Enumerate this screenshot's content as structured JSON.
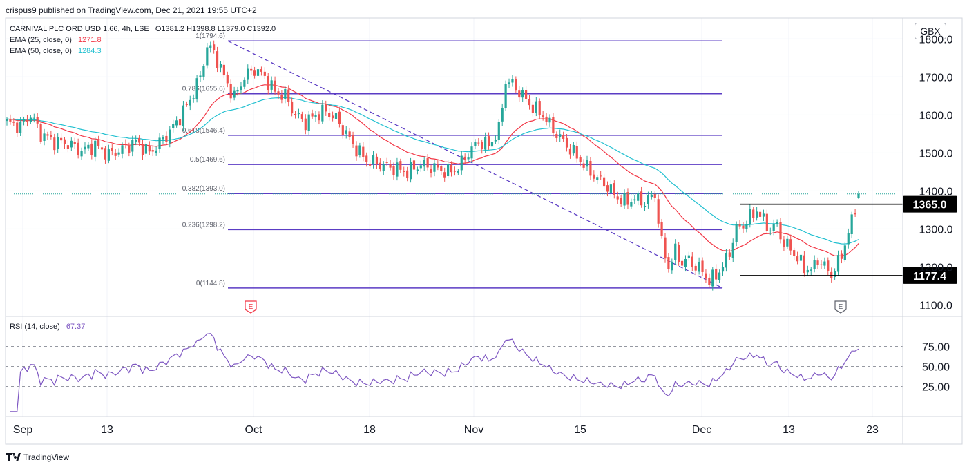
{
  "header": {
    "published_by": "crispus9 published on TradingView.com, Dec 21, 2021 19:55 UTC+2"
  },
  "legend": {
    "symbol_line": {
      "symbol": "CARNIVAL PLC ORD USD 1.66, 4h, LSE",
      "ohlc": "O1381.2  H1398.8  L1379.0  C1392.0"
    },
    "ema25": {
      "label": "EMA (25, close, 0)",
      "value": "1271.8",
      "color": "#f23645"
    },
    "ema50": {
      "label": "EMA (50, close, 0)",
      "value": "1284.3",
      "color": "#22c0d0"
    }
  },
  "currency_button": "GBX",
  "rsi_legend": {
    "label": "RSI (14, close)",
    "value": "67.37",
    "color": "#7e57c2"
  },
  "footer": {
    "brand": "TradingView"
  },
  "colors": {
    "up": "#26a69a",
    "down": "#ef5350",
    "fib": "#5b3cc4",
    "level": "#000000",
    "grid": "#f0f3fa"
  },
  "chart_data": [
    {
      "type": "candlestick",
      "title": "CARNIVAL PLC ORD USD 1.66, 4h, LSE",
      "currency": "GBX",
      "ylim": [
        1070,
        1855
      ],
      "y_ticks": [
        "1800.0",
        "1700.0",
        "1600.0",
        "1500.0",
        "1400.0",
        "1300.0",
        "1200.0",
        "1100.0"
      ],
      "x_ticks": [
        "Sep",
        "13",
        "Oct",
        "18",
        "Nov",
        "15",
        "Dec",
        "13",
        "23"
      ],
      "ohlc_last": {
        "open": 1381.2,
        "high": 1398.8,
        "low": 1379.0,
        "close": 1392.0
      },
      "fibonacci": [
        {
          "label": "1(1794.6)",
          "level": 1794.6
        },
        {
          "label": "0.786(1655.6)",
          "level": 1655.6
        },
        {
          "label": "0.618(1546.4)",
          "level": 1546.4
        },
        {
          "label": "0.5(1469.6)",
          "level": 1469.6
        },
        {
          "label": "0.382(1393.0)",
          "level": 1393.0
        },
        {
          "label": "0.236(1298.2)",
          "level": 1298.2
        },
        {
          "label": "0(1144.8)",
          "level": 1144.8
        }
      ],
      "horizontal_levels": [
        {
          "label": "1365.0",
          "level": 1365.0
        },
        {
          "label": "1177.4",
          "level": 1177.4
        }
      ],
      "price_anchors": [
        [
          0,
          1580
        ],
        [
          4,
          1570
        ],
        [
          7,
          1600
        ],
        [
          10,
          1550
        ],
        [
          14,
          1530
        ],
        [
          18,
          1525
        ],
        [
          22,
          1505
        ],
        [
          26,
          1520
        ],
        [
          30,
          1495
        ],
        [
          34,
          1510
        ],
        [
          38,
          1530
        ],
        [
          42,
          1500
        ],
        [
          46,
          1535
        ],
        [
          50,
          1580
        ],
        [
          54,
          1640
        ],
        [
          57,
          1700
        ],
        [
          59,
          1780
        ],
        [
          61,
          1765
        ],
        [
          64,
          1700
        ],
        [
          67,
          1645
        ],
        [
          70,
          1700
        ],
        [
          73,
          1720
        ],
        [
          76,
          1700
        ],
        [
          79,
          1660
        ],
        [
          82,
          1650
        ],
        [
          85,
          1600
        ],
        [
          88,
          1580
        ],
        [
          91,
          1600
        ],
        [
          94,
          1610
        ],
        [
          97,
          1590
        ],
        [
          100,
          1550
        ],
        [
          103,
          1510
        ],
        [
          106,
          1480
        ],
        [
          110,
          1470
        ],
        [
          114,
          1460
        ],
        [
          118,
          1450
        ],
        [
          122,
          1470
        ],
        [
          126,
          1460
        ],
        [
          130,
          1450
        ],
        [
          133,
          1460
        ],
        [
          136,
          1500
        ],
        [
          139,
          1530
        ],
        [
          142,
          1520
        ],
        [
          145,
          1560
        ],
        [
          147,
          1690
        ],
        [
          149,
          1680
        ],
        [
          152,
          1650
        ],
        [
          155,
          1620
        ],
        [
          158,
          1600
        ],
        [
          161,
          1560
        ],
        [
          164,
          1530
        ],
        [
          167,
          1500
        ],
        [
          170,
          1470
        ],
        [
          173,
          1440
        ],
        [
          176,
          1420
        ],
        [
          179,
          1390
        ],
        [
          182,
          1370
        ],
        [
          185,
          1380
        ],
        [
          188,
          1370
        ],
        [
          191,
          1390
        ],
        [
          193,
          1260
        ],
        [
          195,
          1200
        ],
        [
          197,
          1240
        ],
        [
          199,
          1210
        ],
        [
          201,
          1220
        ],
        [
          203,
          1200
        ],
        [
          205,
          1190
        ],
        [
          207,
          1160
        ],
        [
          209,
          1180
        ],
        [
          211,
          1200
        ],
        [
          213,
          1240
        ],
        [
          215,
          1300
        ],
        [
          217,
          1310
        ],
        [
          219,
          1330
        ],
        [
          221,
          1350
        ],
        [
          223,
          1320
        ],
        [
          225,
          1300
        ],
        [
          227,
          1310
        ],
        [
          229,
          1260
        ],
        [
          231,
          1250
        ],
        [
          233,
          1220
        ],
        [
          235,
          1200
        ],
        [
          237,
          1190
        ],
        [
          239,
          1220
        ],
        [
          241,
          1200
        ],
        [
          243,
          1180
        ],
        [
          245,
          1210
        ],
        [
          247,
          1260
        ],
        [
          249,
          1320
        ],
        [
          251,
          1392
        ]
      ]
    },
    {
      "type": "line",
      "title": "RSI (14, close)",
      "ylim": [
        0,
        100
      ],
      "y_ticks": [
        "75.00",
        "50.00",
        "25.00"
      ],
      "bands": [
        70,
        50,
        30
      ],
      "last_value": 67.37
    }
  ]
}
